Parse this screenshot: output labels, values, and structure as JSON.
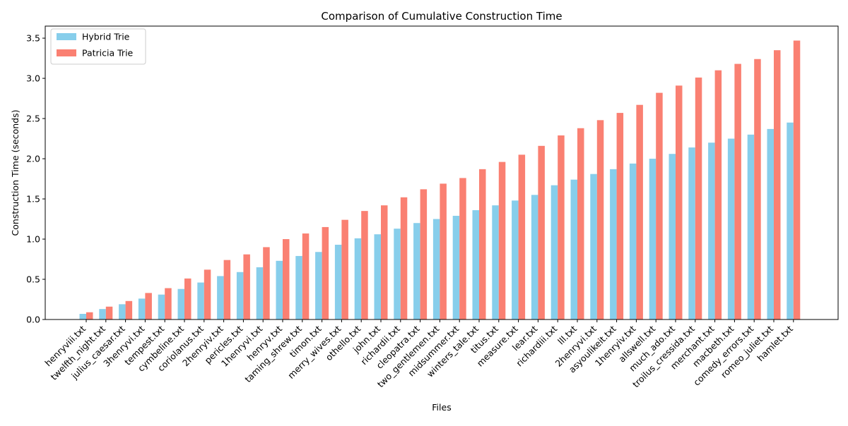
{
  "chart_data": {
    "type": "bar",
    "title": "Comparison of Cumulative Construction Time",
    "xlabel": "Files",
    "ylabel": "Construction Time (seconds)",
    "ylim": [
      0,
      3.65
    ],
    "yticks": [
      0.0,
      0.5,
      1.0,
      1.5,
      2.0,
      2.5,
      3.0,
      3.5
    ],
    "ytick_labels": [
      "0.0",
      "0.5",
      "1.0",
      "1.5",
      "2.0",
      "2.5",
      "3.0",
      "3.5"
    ],
    "grid": false,
    "legend_position": "top-left",
    "categories": [
      "henryviii.txt",
      "twelfth_night.txt",
      "julius_caesar.txt",
      "3henryvi.txt",
      "tempest.txt",
      "cymbeline.txt",
      "coriolanus.txt",
      "2henryiv.txt",
      "pericles.txt",
      "1henryvi.txt",
      "henryv.txt",
      "taming_shrew.txt",
      "timon.txt",
      "merry_wives.txt",
      "othello.txt",
      "john.txt",
      "richardii.txt",
      "cleopatra.txt",
      "two_gentlemen.txt",
      "midsummer.txt",
      "winters_tale.txt",
      "titus.txt",
      "measure.txt",
      "lear.txt",
      "richardiii.txt",
      "lll.txt",
      "2henryvi.txt",
      "asyoulikeit.txt",
      "1henryiv.txt",
      "allswell.txt",
      "much_ado.txt",
      "troilus_cressida.txt",
      "merchant.txt",
      "macbeth.txt",
      "comedy_errors.txt",
      "romeo_juliet.txt",
      "hamlet.txt"
    ],
    "series": [
      {
        "name": "Hybrid Trie",
        "color": "#87ceeb",
        "values": [
          0.07,
          0.13,
          0.19,
          0.26,
          0.31,
          0.38,
          0.46,
          0.54,
          0.59,
          0.65,
          0.73,
          0.79,
          0.84,
          0.93,
          1.01,
          1.06,
          1.13,
          1.2,
          1.25,
          1.29,
          1.36,
          1.42,
          1.48,
          1.55,
          1.67,
          1.74,
          1.81,
          1.87,
          1.94,
          2.0,
          2.06,
          2.14,
          2.2,
          2.25,
          2.3,
          2.37,
          2.45
        ]
      },
      {
        "name": "Patricia Trie",
        "color": "#fa8072",
        "values": [
          0.09,
          0.16,
          0.23,
          0.33,
          0.39,
          0.51,
          0.62,
          0.74,
          0.81,
          0.9,
          1.0,
          1.07,
          1.15,
          1.24,
          1.35,
          1.42,
          1.52,
          1.62,
          1.69,
          1.76,
          1.87,
          1.96,
          2.05,
          2.16,
          2.29,
          2.38,
          2.48,
          2.57,
          2.67,
          2.82,
          2.91,
          3.01,
          3.1,
          3.18,
          3.24,
          3.35,
          3.47
        ]
      }
    ]
  }
}
